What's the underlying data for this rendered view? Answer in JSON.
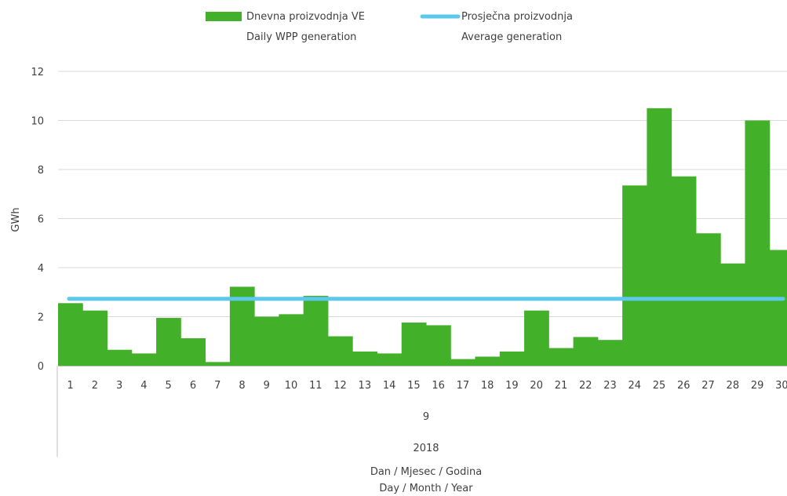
{
  "chart_data": {
    "type": "bar",
    "legend": {
      "position": "top",
      "items": [
        {
          "kind": "bar",
          "line1": "Dnevna proizvodnja VE",
          "line2": "Daily WPP generation"
        },
        {
          "kind": "line",
          "line1": "Prosječna proizvodnja",
          "line2": "Average generation"
        }
      ]
    },
    "ylabel": "GWh",
    "ylim": [
      0,
      12
    ],
    "yticks": [
      "0",
      "2",
      "4",
      "6",
      "8",
      "10",
      "12"
    ],
    "grid": true,
    "categories": [
      "1",
      "2",
      "3",
      "4",
      "5",
      "6",
      "7",
      "8",
      "9",
      "10",
      "11",
      "12",
      "13",
      "14",
      "15",
      "16",
      "17",
      "18",
      "19",
      "20",
      "21",
      "22",
      "23",
      "24",
      "25",
      "26",
      "27",
      "28",
      "29",
      "30"
    ],
    "month_label": "9",
    "year_label": "2018",
    "xlabel_line1": "Dan / Mjesec / Godina",
    "xlabel_line2": "Day / Month / Year",
    "series": [
      {
        "name": "Dnevna proizvodnja VE",
        "type": "bar",
        "values": [
          2.55,
          2.25,
          0.65,
          0.5,
          1.95,
          1.12,
          0.15,
          3.22,
          2.0,
          2.1,
          2.85,
          1.2,
          0.58,
          0.5,
          1.76,
          1.65,
          0.27,
          0.37,
          0.58,
          2.25,
          0.72,
          1.17,
          1.05,
          7.35,
          10.5,
          7.72,
          5.4,
          4.17,
          10.0,
          4.72
        ]
      },
      {
        "name": "Prosječna proizvodnja",
        "type": "line",
        "value": 2.73
      }
    ],
    "colors": {
      "bar": "#43b02a",
      "average": "#5bc8ec",
      "grid": "#d9d9d9",
      "axis": "#bfbfbf",
      "text": "#404040"
    }
  }
}
